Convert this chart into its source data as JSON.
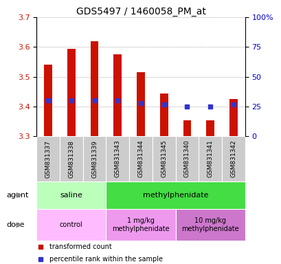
{
  "title": "GDS5497 / 1460058_PM_at",
  "samples": [
    "GSM831337",
    "GSM831338",
    "GSM831339",
    "GSM831343",
    "GSM831344",
    "GSM831345",
    "GSM831340",
    "GSM831341",
    "GSM831342"
  ],
  "bar_values": [
    3.54,
    3.595,
    3.62,
    3.575,
    3.515,
    3.445,
    3.355,
    3.355,
    3.425
  ],
  "bar_bottom": 3.3,
  "dot_percentiles": [
    30,
    30,
    30,
    30,
    28,
    27,
    25,
    25,
    27
  ],
  "ylim_left": [
    3.3,
    3.7
  ],
  "ylim_right": [
    0,
    100
  ],
  "yticks_left": [
    3.3,
    3.4,
    3.5,
    3.6,
    3.7
  ],
  "yticks_right": [
    0,
    25,
    50,
    75,
    100
  ],
  "ytick_right_labels": [
    "0",
    "25",
    "50",
    "75",
    "100%"
  ],
  "bar_color": "#cc1100",
  "dot_color": "#3333cc",
  "agent_groups": [
    {
      "label": "saline",
      "start": 0,
      "end": 3,
      "color": "#bbffbb"
    },
    {
      "label": "methylphenidate",
      "start": 3,
      "end": 9,
      "color": "#44dd44"
    }
  ],
  "dose_groups": [
    {
      "label": "control",
      "start": 0,
      "end": 3,
      "color": "#ffbbff"
    },
    {
      "label": "1 mg/kg\nmethylphenidate",
      "start": 3,
      "end": 6,
      "color": "#ee99ee"
    },
    {
      "label": "10 mg/kg\nmethylphenidate",
      "start": 6,
      "end": 9,
      "color": "#cc77cc"
    }
  ],
  "legend_items": [
    {
      "label": "transformed count",
      "color": "#cc1100"
    },
    {
      "label": "percentile rank within the sample",
      "color": "#3333cc"
    }
  ],
  "agent_label": "agent",
  "dose_label": "dose",
  "grid_color": "#888888",
  "tick_label_color_left": "#cc1100",
  "tick_label_color_right": "#0000cc",
  "xtick_bg_color": "#cccccc",
  "bar_width": 0.35
}
